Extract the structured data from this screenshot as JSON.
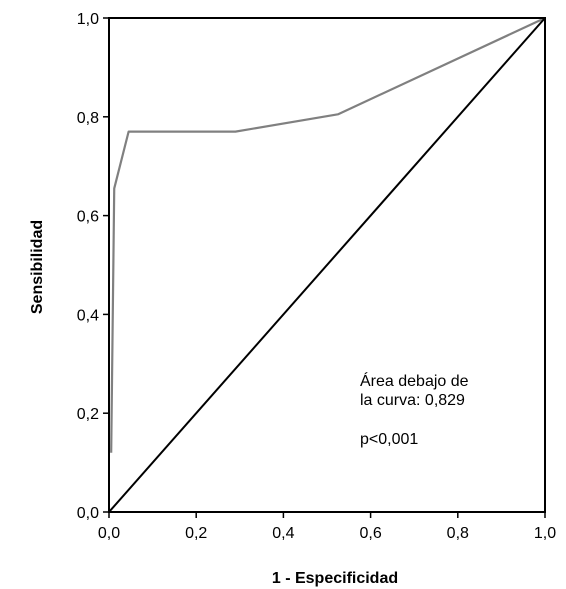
{
  "chart_data": {
    "type": "line",
    "title": "",
    "xlabel": "1 - Especificidad",
    "ylabel": "Sensibilidad",
    "xlim": [
      0,
      1
    ],
    "ylim": [
      0,
      1
    ],
    "x_ticks": [
      "0,0",
      "0,2",
      "0,4",
      "0,6",
      "0,8",
      "1,0"
    ],
    "y_ticks": [
      "0,0",
      "0,2",
      "0,4",
      "0,6",
      "0,8",
      "1,0"
    ],
    "grid": false,
    "series": [
      {
        "color": "#808080",
        "points": [
          [
            0.005,
            0.12
          ],
          [
            0.012,
            0.655
          ],
          [
            0.045,
            0.77
          ],
          [
            0.29,
            0.77
          ],
          [
            0.525,
            0.805
          ],
          [
            1.0,
            1.0
          ]
        ]
      },
      {
        "color": "#000000",
        "points": [
          [
            0,
            0
          ],
          [
            1,
            1
          ]
        ]
      }
    ],
    "annotations": [
      "Área debajo de",
      "la curva: 0,829",
      "p<0,001"
    ]
  }
}
